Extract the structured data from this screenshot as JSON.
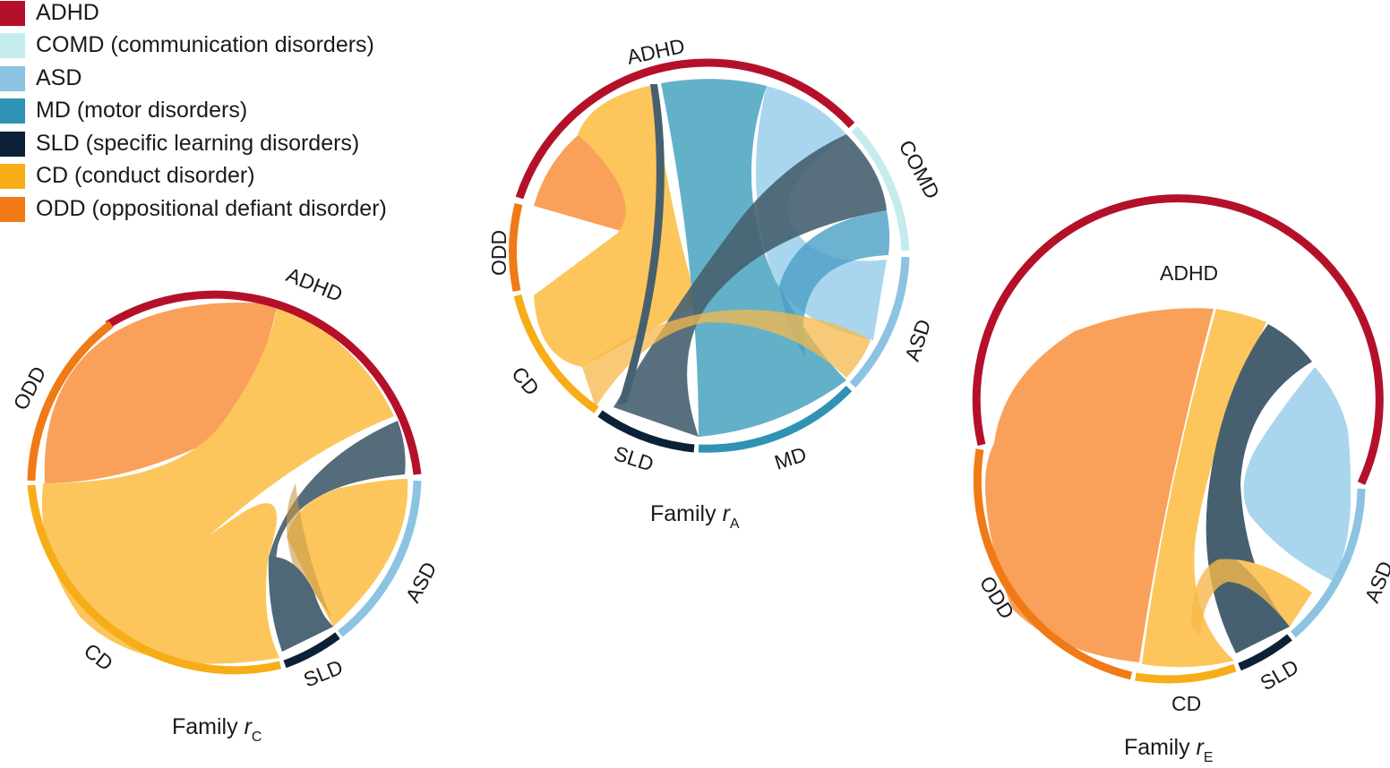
{
  "legend": {
    "items": [
      {
        "key": "ADHD",
        "label": "ADHD",
        "color": "#b5102a"
      },
      {
        "key": "COMD",
        "label": "COMD (communication disorders)",
        "color": "#c4ecec"
      },
      {
        "key": "ASD",
        "label": "ASD",
        "color": "#8cc3e3"
      },
      {
        "key": "MD",
        "label": "MD (motor disorders)",
        "color": "#2f93b3"
      },
      {
        "key": "SLD",
        "label": "SLD (specific learning disorders)",
        "color": "#0c2036"
      },
      {
        "key": "CD",
        "label": "CD (conduct disorder)",
        "color": "#f7ad18"
      },
      {
        "key": "ODD",
        "label": "ODD (oppositional defiant disorder)",
        "color": "#f07a16"
      }
    ]
  },
  "diagrams": {
    "rA": {
      "caption_main": "Family ",
      "caption_var": "r",
      "caption_sub": "A",
      "segments": [
        {
          "key": "ADHD",
          "label": "ADHD"
        },
        {
          "key": "COMD",
          "label": "COMD"
        },
        {
          "key": "ASD",
          "label": "ASD"
        },
        {
          "key": "MD",
          "label": "MD"
        },
        {
          "key": "SLD",
          "label": "SLD"
        },
        {
          "key": "CD",
          "label": "CD"
        },
        {
          "key": "ODD",
          "label": "ODD"
        }
      ]
    },
    "rC": {
      "caption_main": "Family ",
      "caption_var": "r",
      "caption_sub": "C",
      "segments": [
        {
          "key": "ADHD",
          "label": "ADHD"
        },
        {
          "key": "ASD",
          "label": "ASD"
        },
        {
          "key": "SLD",
          "label": "SLD"
        },
        {
          "key": "CD",
          "label": "CD"
        },
        {
          "key": "ODD",
          "label": "ODD"
        }
      ]
    },
    "rE": {
      "caption_main": "Family ",
      "caption_var": "r",
      "caption_sub": "E",
      "segments": [
        {
          "key": "ADHD",
          "label": "ADHD"
        },
        {
          "key": "ASD",
          "label": "ASD"
        },
        {
          "key": "SLD",
          "label": "SLD"
        },
        {
          "key": "CD",
          "label": "CD"
        },
        {
          "key": "ODD",
          "label": "ODD"
        }
      ]
    }
  }
}
